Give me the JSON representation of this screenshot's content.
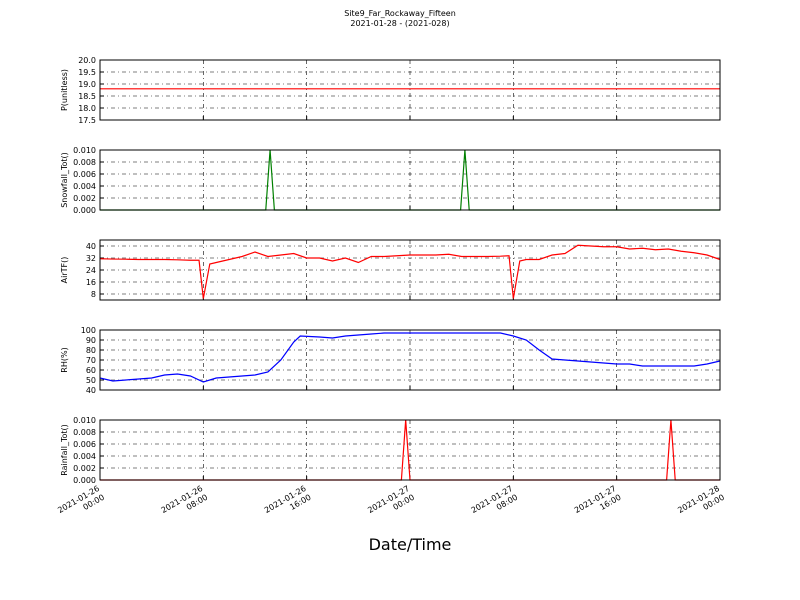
{
  "chart_data": [
    {
      "type": "line",
      "title": "Site9_Far_Rockaway_Fifteen",
      "subtitle": "2021-01-28 - (2021-028)",
      "ylabel": "P(unitless)",
      "color": "#ff0000",
      "xlim": [
        "2021-01-26 00:00",
        "2021-01-28 00:00"
      ],
      "xticks": [
        "2021-01-26 00:00",
        "2021-01-26 08:00",
        "2021-01-26 16:00",
        "2021-01-27 00:00",
        "2021-01-27 08:00",
        "2021-01-27 16:00",
        "2021-01-28 00:00"
      ],
      "ylim": [
        17.5,
        20
      ],
      "yticks": [
        17.5,
        {
          "value": 18,
          "label": "18.0"
        },
        18.5,
        {
          "value": 19,
          "label": "19.0"
        },
        19.5,
        {
          "value": 20,
          "label": "20.0"
        }
      ],
      "grid": true,
      "x": [
        "2021-01-26 00:00",
        "2021-01-28 00:00"
      ],
      "values": [
        18.8,
        18.8
      ]
    },
    {
      "type": "line",
      "ylabel": "Snowfall_Tot()",
      "color": "#008000",
      "xlim": [
        "2021-01-26 00:00",
        "2021-01-28 00:00"
      ],
      "xticks": [
        "2021-01-26 00:00",
        "2021-01-26 08:00",
        "2021-01-26 16:00",
        "2021-01-27 00:00",
        "2021-01-27 08:00",
        "2021-01-27 16:00",
        "2021-01-28 00:00"
      ],
      "ylim": [
        0,
        0.01
      ],
      "yticks": [
        {
          "value": 0,
          "label": "0.000"
        },
        {
          "value": 0.002,
          "label": "0.002"
        },
        {
          "value": 0.004,
          "label": "0.004"
        },
        {
          "value": 0.006,
          "label": "0.006"
        },
        {
          "value": 0.008,
          "label": "0.008"
        },
        {
          "value": 0.01,
          "label": "0.010"
        }
      ],
      "grid": true,
      "x": [
        "2021-01-26 00:00",
        "2021-01-26 12:50",
        "2021-01-26 13:10",
        "2021-01-26 13:30",
        "2021-01-27 03:55",
        "2021-01-27 04:15",
        "2021-01-27 04:35",
        "2021-01-28 00:00"
      ],
      "values": [
        0,
        0,
        0.01,
        0,
        0,
        0.01,
        0,
        0
      ]
    },
    {
      "type": "line",
      "ylabel": "AirTF()",
      "color": "#ff0000",
      "xlim": [
        "2021-01-26 00:00",
        "2021-01-28 00:00"
      ],
      "xticks": [
        "2021-01-26 00:00",
        "2021-01-26 08:00",
        "2021-01-26 16:00",
        "2021-01-27 00:00",
        "2021-01-27 08:00",
        "2021-01-27 16:00",
        "2021-01-28 00:00"
      ],
      "ylim": [
        4,
        44
      ],
      "yticks": [
        8,
        16,
        24,
        32,
        40
      ],
      "grid": true,
      "x": [
        "2021-01-26 00:00",
        "2021-01-26 01:00",
        "2021-01-26 02:00",
        "2021-01-26 03:00",
        "2021-01-26 04:00",
        "2021-01-26 05:00",
        "2021-01-26 06:00",
        "2021-01-26 07:00",
        "2021-01-26 07:40",
        "2021-01-26 08:00",
        "2021-01-26 08:30",
        "2021-01-26 09:00",
        "2021-01-26 10:00",
        "2021-01-26 11:00",
        "2021-01-26 12:00",
        "2021-01-26 13:00",
        "2021-01-26 14:00",
        "2021-01-26 15:00",
        "2021-01-26 16:00",
        "2021-01-26 17:00",
        "2021-01-26 18:00",
        "2021-01-26 19:00",
        "2021-01-26 20:00",
        "2021-01-26 21:00",
        "2021-01-26 22:00",
        "2021-01-26 23:00",
        "2021-01-27 00:00",
        "2021-01-27 01:00",
        "2021-01-27 02:00",
        "2021-01-27 03:00",
        "2021-01-27 04:00",
        "2021-01-27 05:00",
        "2021-01-27 06:00",
        "2021-01-27 07:00",
        "2021-01-27 07:40",
        "2021-01-27 08:00",
        "2021-01-27 08:30",
        "2021-01-27 09:00",
        "2021-01-27 10:00",
        "2021-01-27 11:00",
        "2021-01-27 12:00",
        "2021-01-27 13:00",
        "2021-01-27 14:00",
        "2021-01-27 15:00",
        "2021-01-27 16:00",
        "2021-01-27 17:00",
        "2021-01-27 18:00",
        "2021-01-27 19:00",
        "2021-01-27 20:00",
        "2021-01-27 21:00",
        "2021-01-27 22:00",
        "2021-01-27 23:00",
        "2021-01-28 00:00"
      ],
      "values": [
        31.5,
        31.3,
        31.2,
        31,
        31,
        31,
        30.8,
        30.5,
        30.5,
        5,
        28,
        29,
        31,
        33,
        36,
        33,
        34,
        35,
        32,
        32,
        30,
        32,
        29,
        33,
        33,
        33.5,
        34,
        34,
        34,
        34.5,
        33,
        33,
        33,
        33.2,
        33.5,
        5,
        30,
        31,
        31,
        34,
        35,
        40.5,
        40,
        39.5,
        39.5,
        38,
        38.5,
        37.5,
        38,
        36.5,
        35.5,
        34,
        31
      ]
    },
    {
      "type": "line",
      "ylabel": "RH(%)",
      "color": "#0000ff",
      "xlim": [
        "2021-01-26 00:00",
        "2021-01-28 00:00"
      ],
      "xticks": [
        "2021-01-26 00:00",
        "2021-01-26 08:00",
        "2021-01-26 16:00",
        "2021-01-27 00:00",
        "2021-01-27 08:00",
        "2021-01-27 16:00",
        "2021-01-28 00:00"
      ],
      "ylim": [
        40,
        100
      ],
      "yticks": [
        40,
        50,
        60,
        70,
        80,
        90,
        100
      ],
      "grid": true,
      "x": [
        "2021-01-26 00:00",
        "2021-01-26 01:00",
        "2021-01-26 02:00",
        "2021-01-26 03:00",
        "2021-01-26 04:00",
        "2021-01-26 05:00",
        "2021-01-26 06:00",
        "2021-01-26 07:00",
        "2021-01-26 08:00",
        "2021-01-26 09:00",
        "2021-01-26 10:00",
        "2021-01-26 11:00",
        "2021-01-26 12:00",
        "2021-01-26 13:00",
        "2021-01-26 14:00",
        "2021-01-26 15:00",
        "2021-01-26 15:30",
        "2021-01-26 17:00",
        "2021-01-26 18:00",
        "2021-01-26 19:00",
        "2021-01-26 20:00",
        "2021-01-26 21:00",
        "2021-01-26 22:00",
        "2021-01-27 07:00",
        "2021-01-27 08:00",
        "2021-01-27 09:00",
        "2021-01-27 10:00",
        "2021-01-27 11:00",
        "2021-01-27 12:00",
        "2021-01-27 13:00",
        "2021-01-27 14:00",
        "2021-01-27 15:00",
        "2021-01-27 16:00",
        "2021-01-27 17:00",
        "2021-01-27 18:00",
        "2021-01-27 19:00",
        "2021-01-27 20:00",
        "2021-01-27 21:00",
        "2021-01-27 22:00",
        "2021-01-27 23:00",
        "2021-01-28 00:00"
      ],
      "values": [
        52,
        49,
        50,
        51,
        52,
        55,
        56,
        54,
        48,
        52,
        53,
        54,
        55,
        58,
        70,
        88,
        94,
        93,
        92,
        94,
        95,
        96,
        97,
        97,
        94,
        90,
        80,
        71,
        70,
        69,
        68,
        67,
        66,
        66,
        64,
        64,
        64,
        64,
        64,
        66,
        69
      ]
    },
    {
      "type": "line",
      "ylabel": "Rainfall_Tot()",
      "xlabel": "Date/Time",
      "color": "#ff0000",
      "xlim": [
        "2021-01-26 00:00",
        "2021-01-28 00:00"
      ],
      "xticks": [
        "2021-01-26 00:00",
        "2021-01-26 08:00",
        "2021-01-26 16:00",
        "2021-01-27 00:00",
        "2021-01-27 08:00",
        "2021-01-27 16:00",
        "2021-01-28 00:00"
      ],
      "ylim": [
        0,
        0.01
      ],
      "yticks": [
        {
          "value": 0,
          "label": "0.000"
        },
        {
          "value": 0.002,
          "label": "0.002"
        },
        {
          "value": 0.004,
          "label": "0.004"
        },
        {
          "value": 0.006,
          "label": "0.006"
        },
        {
          "value": 0.008,
          "label": "0.008"
        },
        {
          "value": 0.01,
          "label": "0.010"
        }
      ],
      "grid": true,
      "x": [
        "2021-01-26 00:00",
        "2021-01-26 23:20",
        "2021-01-26 23:40",
        "2021-01-27 00:00",
        "2021-01-27 19:52",
        "2021-01-27 20:12",
        "2021-01-27 20:32",
        "2021-01-28 00:00"
      ],
      "values": [
        0,
        0,
        0.01,
        0,
        0,
        0.01,
        0,
        0
      ]
    }
  ]
}
